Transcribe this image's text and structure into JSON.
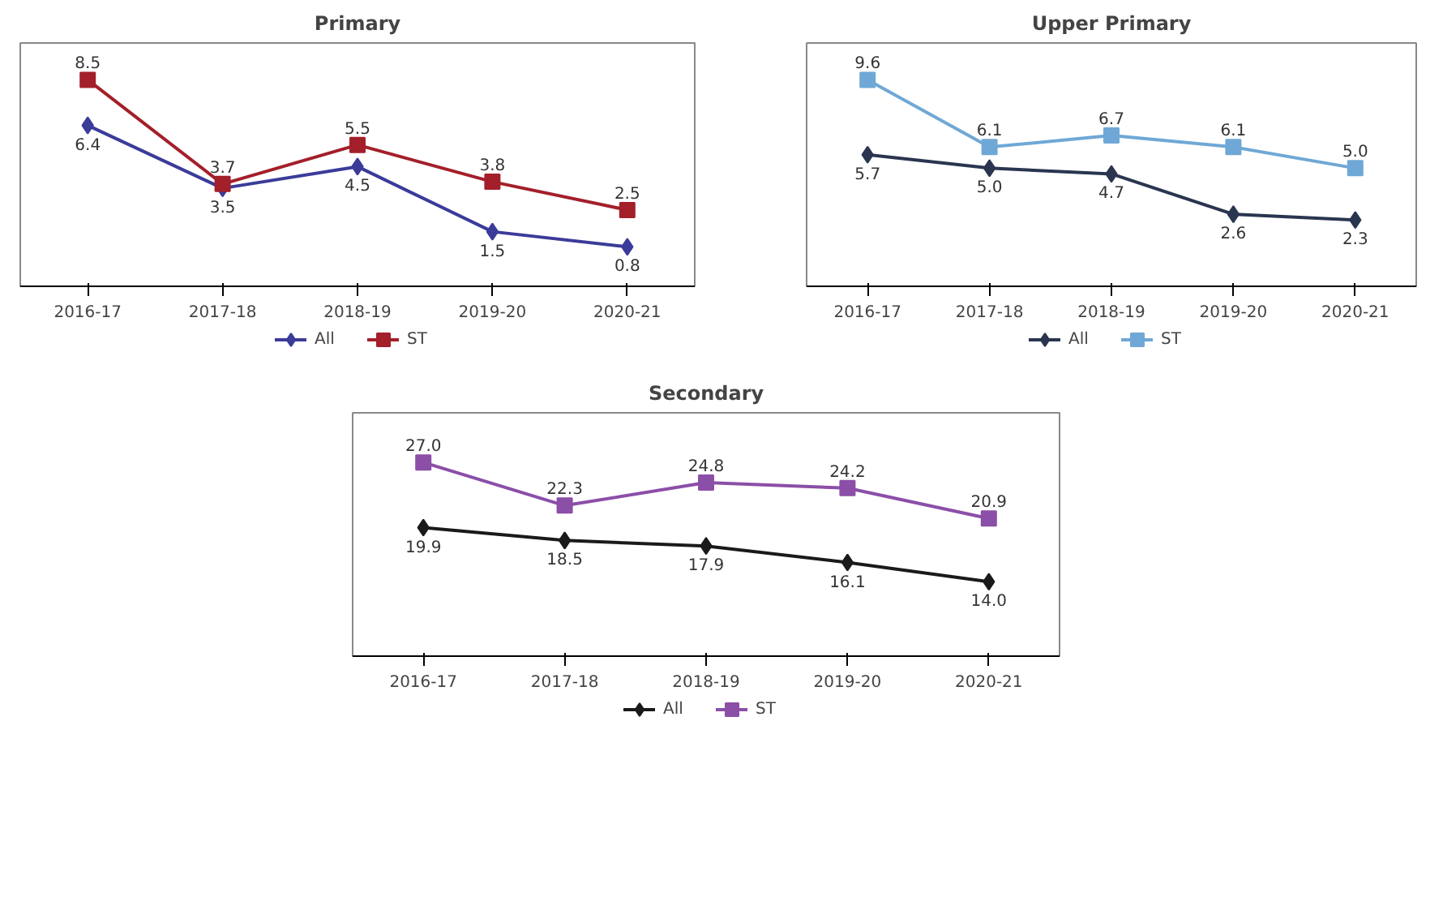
{
  "chart_data": [
    {
      "type": "line",
      "title": "Primary",
      "categories": [
        "2016-17",
        "2017-18",
        "2018-19",
        "2019-20",
        "2020-21"
      ],
      "legend": "bottom",
      "tick_labels": "x",
      "grid": false,
      "series": [
        {
          "name": "All",
          "color": "#3b3b9a",
          "marker": "diamond",
          "values": [
            6.4,
            3.5,
            4.5,
            1.5,
            0.8
          ],
          "value_labels": [
            "6.4",
            "3.5",
            "4.5",
            "1.5",
            "0.8"
          ]
        },
        {
          "name": "ST",
          "color": "#a31f2a",
          "marker": "square",
          "values": [
            8.5,
            3.7,
            5.5,
            3.8,
            2.5
          ],
          "value_labels": [
            "8.5",
            "3.7",
            "5.5",
            "3.8",
            "2.5"
          ]
        }
      ]
    },
    {
      "type": "line",
      "title": "Upper Primary",
      "categories": [
        "2016-17",
        "2017-18",
        "2018-19",
        "2019-20",
        "2020-21"
      ],
      "legend": "bottom",
      "tick_labels": "x",
      "grid": false,
      "series": [
        {
          "name": "All",
          "color": "#2a3550",
          "marker": "diamond",
          "values": [
            5.7,
            5.0,
            4.7,
            2.6,
            2.3
          ],
          "value_labels": [
            "5.7",
            "5.0",
            "4.7",
            "2.6",
            "2.3"
          ]
        },
        {
          "name": "ST",
          "color": "#6fa8d6",
          "marker": "square",
          "values": [
            9.6,
            6.1,
            6.7,
            6.1,
            5.0
          ],
          "value_labels": [
            "9.6",
            "6.1",
            "6.7",
            "6.1",
            "5.0"
          ]
        }
      ]
    },
    {
      "type": "line",
      "title": "Secondary",
      "categories": [
        "2016-17",
        "2017-18",
        "2018-19",
        "2019-20",
        "2020-21"
      ],
      "legend": "bottom",
      "tick_labels": "x",
      "grid": false,
      "series": [
        {
          "name": "All",
          "color": "#1a1a1a",
          "marker": "diamond",
          "values": [
            19.9,
            18.5,
            17.9,
            16.1,
            14.0
          ],
          "value_labels": [
            "19.9",
            "18.5",
            "17.9",
            "16.1",
            "14.0"
          ]
        },
        {
          "name": "ST",
          "color": "#8b4fa8",
          "marker": "square",
          "values": [
            27.0,
            22.3,
            24.8,
            24.2,
            20.9
          ],
          "value_labels": [
            "27.0",
            "22.3",
            "24.8",
            "24.2",
            "20.9"
          ]
        }
      ]
    }
  ]
}
